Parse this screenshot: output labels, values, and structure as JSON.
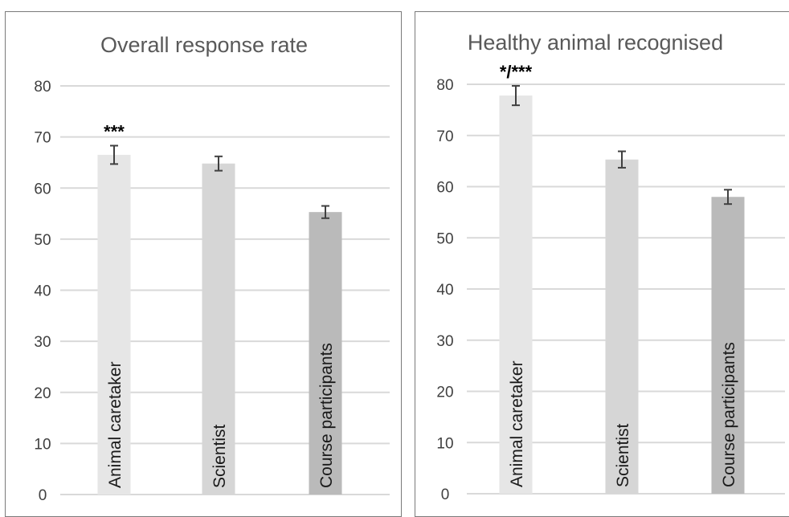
{
  "chart_data": [
    {
      "type": "bar",
      "title": "Overall response rate",
      "categories": [
        "Animal caretaker",
        "Scientist",
        "Course participants"
      ],
      "values": [
        66.5,
        64.8,
        55.3
      ],
      "errors": [
        1.8,
        1.4,
        1.2
      ],
      "annotations": [
        "***",
        "",
        ""
      ],
      "colors": [
        "#e6e6e6",
        "#d6d6d6",
        "#bababa"
      ],
      "ylim": [
        0,
        80
      ],
      "yticks": [
        "0",
        "10",
        "20",
        "30",
        "40",
        "50",
        "60",
        "70",
        "80"
      ],
      "grid": true,
      "xlabel": "",
      "ylabel": ""
    },
    {
      "type": "bar",
      "title": "Healthy animal recognised",
      "categories": [
        "Animal caretaker",
        "Scientist",
        "Course participants"
      ],
      "values": [
        77.8,
        65.3,
        58.0
      ],
      "errors": [
        1.9,
        1.6,
        1.4
      ],
      "annotations": [
        "*/***",
        "",
        ""
      ],
      "colors": [
        "#e6e6e6",
        "#d6d6d6",
        "#bababa"
      ],
      "ylim": [
        0,
        80
      ],
      "yticks": [
        "0",
        "10",
        "20",
        "30",
        "40",
        "50",
        "60",
        "70",
        "80"
      ],
      "grid": true,
      "xlabel": "",
      "ylabel": ""
    }
  ]
}
